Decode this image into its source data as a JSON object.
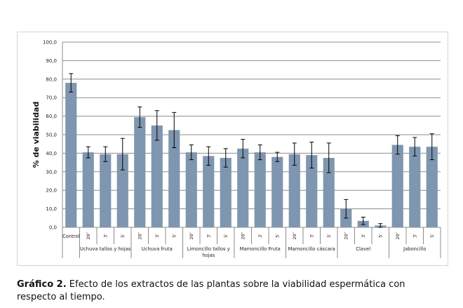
{
  "chart_data": {
    "type": "bar",
    "ylabel": "% de viabilidad",
    "xlabel": "",
    "ylim": [
      0,
      100
    ],
    "yticks": [
      "0,0",
      "10,0",
      "20,0",
      "30,0",
      "40,0",
      "50,0",
      "60,0",
      "70,0",
      "80,0",
      "90,0",
      "100,0"
    ],
    "grid": true,
    "legend": "none",
    "color": "#7f96b0",
    "errorbar_color": "#000000",
    "bars": [
      {
        "group": "Control",
        "tick": "",
        "value": 78.0,
        "error": 5.0
      },
      {
        "group": "Uchuva tallos y hojas",
        "tick": "20′′",
        "value": 40.5,
        "error": 3.0
      },
      {
        "group": "Uchuva tallos y hojas",
        "tick": "3′",
        "value": 39.5,
        "error": 4.0
      },
      {
        "group": "Uchuva tallos y hojas",
        "tick": "5′",
        "value": 39.5,
        "error": 8.5
      },
      {
        "group": "Uchuva fruta",
        "tick": "20′′",
        "value": 59.5,
        "error": 5.5
      },
      {
        "group": "Uchuva fruta",
        "tick": "3′",
        "value": 55.0,
        "error": 8.0
      },
      {
        "group": "Uchuva fruta",
        "tick": "5′",
        "value": 52.5,
        "error": 9.5
      },
      {
        "group": "Limoncillo tallos y hojas",
        "tick": "20′′",
        "value": 40.5,
        "error": 4.0
      },
      {
        "group": "Limoncillo tallos y hojas",
        "tick": "3′",
        "value": 38.5,
        "error": 5.0
      },
      {
        "group": "Limoncillo tallos y hojas",
        "tick": "5′",
        "value": 37.5,
        "error": 5.0
      },
      {
        "group": "Mamoncillo Fruta",
        "tick": "20′′",
        "value": 42.5,
        "error": 5.0
      },
      {
        "group": "Mamoncillo Fruta",
        "tick": "3′",
        "value": 40.5,
        "error": 4.0
      },
      {
        "group": "Mamoncillo Fruta",
        "tick": "5′",
        "value": 38.0,
        "error": 2.5
      },
      {
        "group": "Mamoncillo cáscara",
        "tick": "20′′",
        "value": 39.5,
        "error": 6.0
      },
      {
        "group": "Mamoncillo cáscara",
        "tick": "3′",
        "value": 39.0,
        "error": 7.0
      },
      {
        "group": "Mamoncillo cáscara",
        "tick": "5′",
        "value": 37.5,
        "error": 8.0
      },
      {
        "group": "Clavel",
        "tick": "20′′",
        "value": 10.0,
        "error": 5.0
      },
      {
        "group": "Clavel",
        "tick": "3′",
        "value": 3.5,
        "error": 2.0
      },
      {
        "group": "Clavel",
        "tick": "5′",
        "value": 1.0,
        "error": 1.0
      },
      {
        "group": "Jaboncíllo",
        "tick": "20′′",
        "value": 44.5,
        "error": 5.0
      },
      {
        "group": "Jaboncíllo",
        "tick": "3′",
        "value": 43.5,
        "error": 5.0
      },
      {
        "group": "Jaboncíllo",
        "tick": "5′",
        "value": 43.5,
        "error": 7.0
      }
    ],
    "groups": [
      {
        "name": "Control",
        "label_lines": [
          "Control"
        ],
        "count": 1
      },
      {
        "name": "Uchuva tallos y hojas",
        "label_lines": [
          "Uchuva tallos y hojas"
        ],
        "count": 3
      },
      {
        "name": "Uchuva fruta",
        "label_lines": [
          "Uchuva fruta"
        ],
        "count": 3
      },
      {
        "name": "Limoncillo tallos y hojas",
        "label_lines": [
          "Limoncillo tallos y",
          "hojas"
        ],
        "count": 3
      },
      {
        "name": "Mamoncillo Fruta",
        "label_lines": [
          "Mamoncillo Fruta"
        ],
        "count": 3
      },
      {
        "name": "Mamoncillo cáscara",
        "label_lines": [
          "Mamoncillo cáscara"
        ],
        "count": 3
      },
      {
        "name": "Clavel",
        "label_lines": [
          "Clavel"
        ],
        "count": 3
      },
      {
        "name": "Jaboncíllo",
        "label_lines": [
          "Jaboncíllo"
        ],
        "count": 3
      }
    ]
  },
  "caption": {
    "label": "Gráfico 2.",
    "text": " Efecto de los extractos de las plantas sobre la viabilidad espermática con respecto al tiempo."
  }
}
